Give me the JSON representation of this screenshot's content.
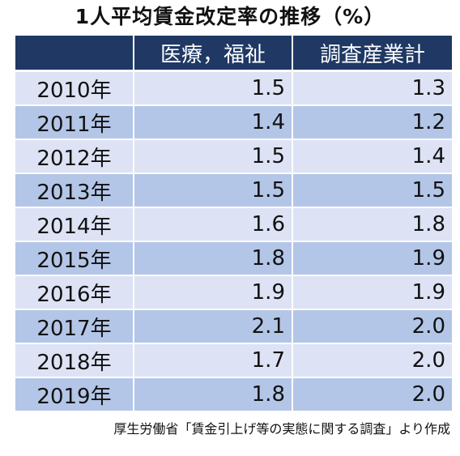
{
  "title": "1人平均賃金改定率の推移（%）",
  "source": "厚生労働省「賃金引上げ等の実態に関する調査」より作成",
  "colors": {
    "header_bg": "#1f3864",
    "row_light": "#dde3f4",
    "row_dark": "#b4c6e7"
  },
  "chart_data": {
    "type": "table",
    "title": "1人平均賃金改定率の推移（%）",
    "columns": [
      "",
      "医療，福祉",
      "調査産業計"
    ],
    "rows": [
      [
        "2010年",
        "1.5",
        "1.3"
      ],
      [
        "2011年",
        "1.4",
        "1.2"
      ],
      [
        "2012年",
        "1.5",
        "1.4"
      ],
      [
        "2013年",
        "1.5",
        "1.5"
      ],
      [
        "2014年",
        "1.6",
        "1.8"
      ],
      [
        "2015年",
        "1.8",
        "1.9"
      ],
      [
        "2016年",
        "1.9",
        "1.9"
      ],
      [
        "2017年",
        "2.1",
        "2.0"
      ],
      [
        "2018年",
        "1.7",
        "2.0"
      ],
      [
        "2019年",
        "1.8",
        "2.0"
      ]
    ],
    "series": [
      {
        "name": "医療，福祉",
        "values": [
          1.5,
          1.4,
          1.5,
          1.5,
          1.6,
          1.8,
          1.9,
          2.1,
          1.7,
          1.8
        ]
      },
      {
        "name": "調査産業計",
        "values": [
          1.3,
          1.2,
          1.4,
          1.5,
          1.8,
          1.9,
          1.9,
          2.0,
          2.0,
          2.0
        ]
      }
    ],
    "categories": [
      "2010年",
      "2011年",
      "2012年",
      "2013年",
      "2014年",
      "2015年",
      "2016年",
      "2017年",
      "2018年",
      "2019年"
    ]
  }
}
